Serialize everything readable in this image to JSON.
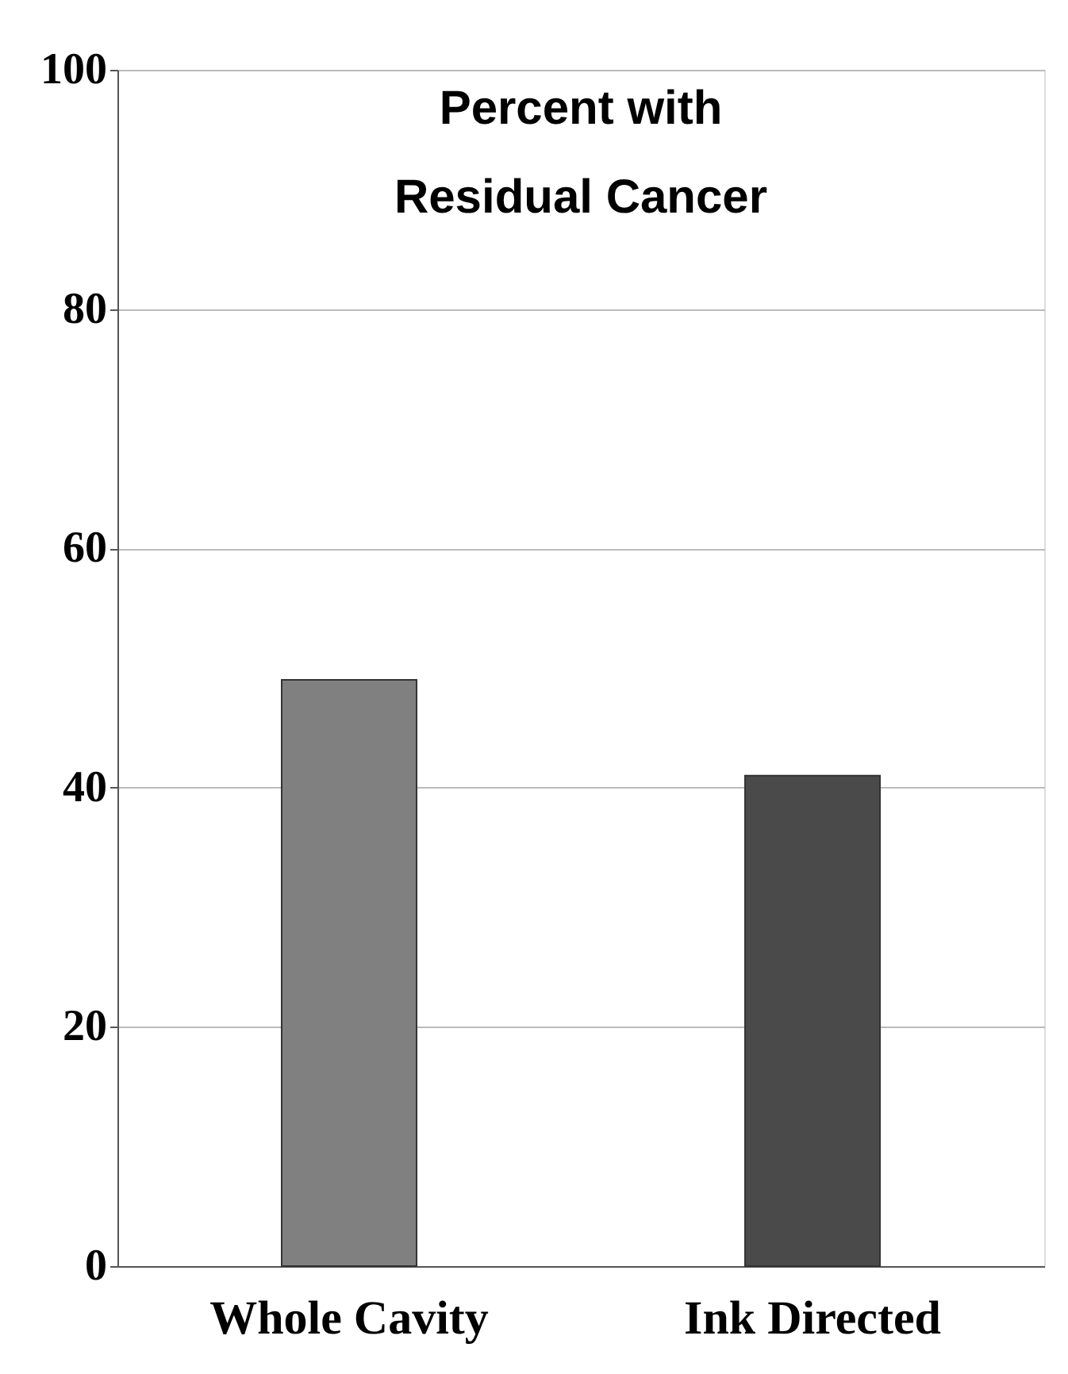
{
  "chart_data": {
    "type": "bar",
    "title": [
      "Percent with",
      "Residual Cancer"
    ],
    "categories": [
      "Whole Cavity",
      "Ink Directed"
    ],
    "values": [
      49,
      41
    ],
    "colors": [
      "#808080",
      "#4a4a4a"
    ],
    "ylim": [
      0,
      100
    ],
    "yticks": [
      0,
      20,
      40,
      60,
      80,
      100
    ],
    "grid": "y"
  }
}
